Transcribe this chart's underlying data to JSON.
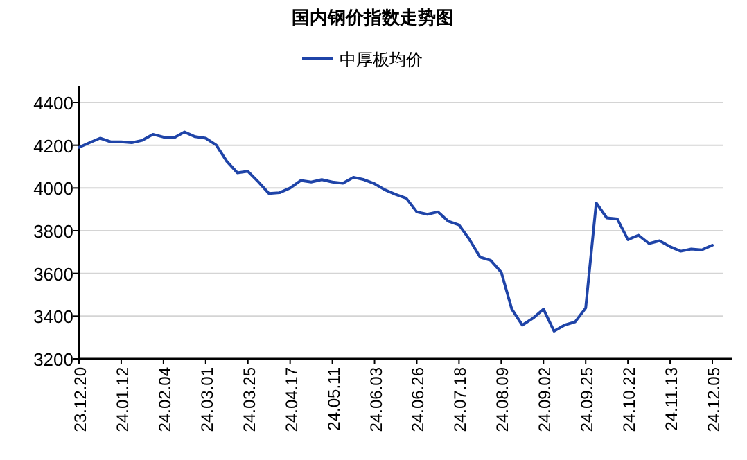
{
  "chart_data": {
    "type": "line",
    "title": "国内钢价指数走势图",
    "legend": "top",
    "categories": [
      "23.12.20",
      null,
      null,
      null,
      "24.01.12",
      null,
      null,
      null,
      "24.02.04",
      null,
      null,
      null,
      "24.03.01",
      null,
      null,
      null,
      "24.03.25",
      null,
      null,
      null,
      "24.04.17",
      null,
      null,
      null,
      "24.05.11",
      null,
      null,
      null,
      "24.06.03",
      null,
      null,
      null,
      "24.06.26",
      null,
      null,
      null,
      "24.07.18",
      null,
      null,
      null,
      "24.08.09",
      null,
      null,
      null,
      "24.09.02",
      null,
      null,
      null,
      "24.09.25",
      null,
      null,
      null,
      "24.10.22",
      null,
      null,
      null,
      "24.11.13",
      null,
      null,
      null,
      "24.12.05"
    ],
    "series": [
      {
        "name": "中厚板均价",
        "color": "#1f44a8",
        "values": [
          4190,
          4212,
          4233,
          4216,
          4216,
          4212,
          4223,
          4251,
          4238,
          4235,
          4262,
          4240,
          4233,
          4201,
          4125,
          4071,
          4078,
          4028,
          3974,
          3978,
          4000,
          4035,
          4028,
          4039,
          4028,
          4022,
          4050,
          4039,
          4020,
          3991,
          3970,
          3952,
          3888,
          3877,
          3888,
          3844,
          3827,
          3758,
          3676,
          3661,
          3606,
          3433,
          3358,
          3390,
          3433,
          3330,
          3358,
          3373,
          3438,
          3930,
          3860,
          3855,
          3758,
          3779,
          3740,
          3753,
          3725,
          3704,
          3714,
          3710,
          3732
        ]
      }
    ],
    "ylim": [
      3200,
      4400
    ],
    "yticks": [
      3200,
      3400,
      3600,
      3800,
      4000,
      4200,
      4400
    ],
    "grid": "y",
    "marker": "none",
    "line_style": "solid"
  }
}
